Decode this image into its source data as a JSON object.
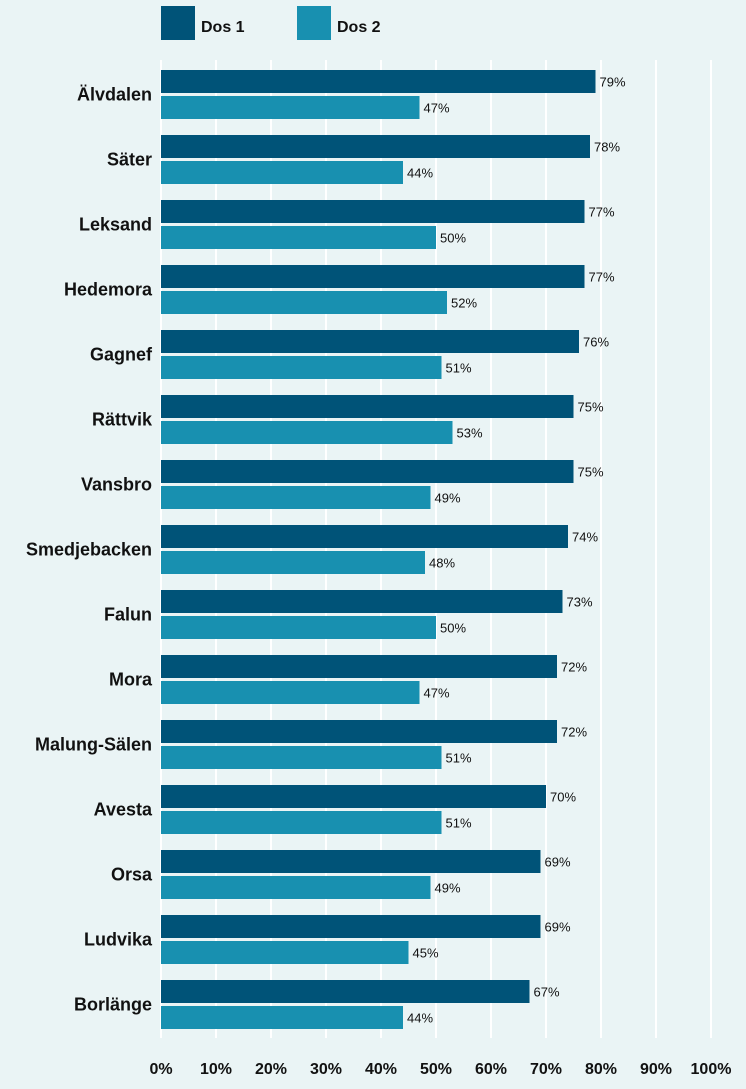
{
  "chart_data": {
    "type": "bar",
    "orientation": "horizontal",
    "categories": [
      "Älvdalen",
      "Säter",
      "Leksand",
      "Hedemora",
      "Gagnef",
      "Rättvik",
      "Vansbro",
      "Smedjebacken",
      "Falun",
      "Mora",
      "Malung-Sälen",
      "Avesta",
      "Orsa",
      "Ludvika",
      "Borlänge"
    ],
    "series": [
      {
        "name": "Dos 1",
        "color": "#005378",
        "values": [
          79,
          78,
          77,
          77,
          76,
          75,
          75,
          74,
          73,
          72,
          72,
          70,
          69,
          69,
          67
        ],
        "labels": [
          "79%",
          "78%",
          "77%",
          "77%",
          "76%",
          "75%",
          "75%",
          "74%",
          "73%",
          "72%",
          "72%",
          "70%",
          "69%",
          "69%",
          "67%"
        ]
      },
      {
        "name": "Dos 2",
        "color": "#1890b0",
        "values": [
          47,
          44,
          50,
          52,
          51,
          53,
          49,
          48,
          50,
          47,
          51,
          51,
          49,
          45,
          44
        ],
        "labels": [
          "47%",
          "44%",
          "50%",
          "52%",
          "51%",
          "53%",
          "49%",
          "48%",
          "50%",
          "47%",
          "51%",
          "51%",
          "49%",
          "45%",
          "44%"
        ]
      }
    ],
    "xlim": [
      0,
      100
    ],
    "xticks": [
      "0%",
      "10%",
      "20%",
      "30%",
      "40%",
      "50%",
      "60%",
      "70%",
      "80%",
      "90%",
      "100%"
    ],
    "grid": true,
    "legend": "top-left",
    "background": "#eaf4f5"
  }
}
